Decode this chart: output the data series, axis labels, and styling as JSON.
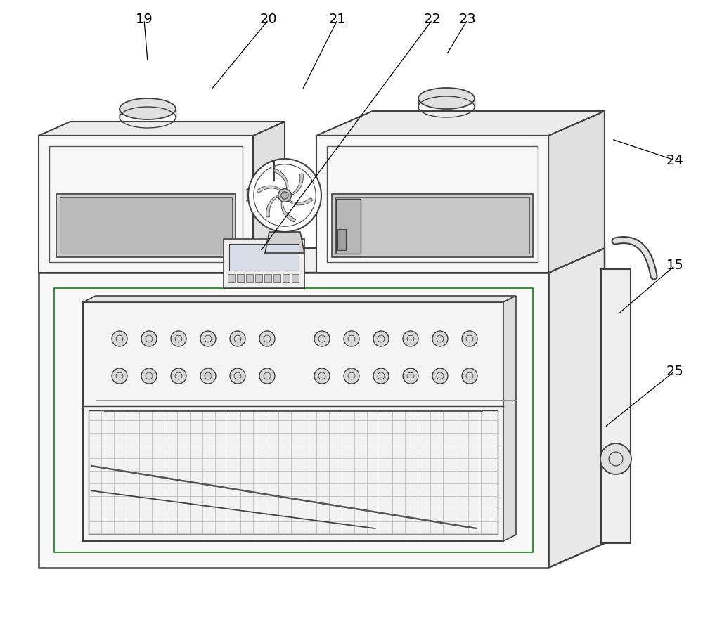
{
  "bg_color": "#ffffff",
  "line_color": "#404040",
  "label_color": "#000000",
  "label_fontsize": 14
}
